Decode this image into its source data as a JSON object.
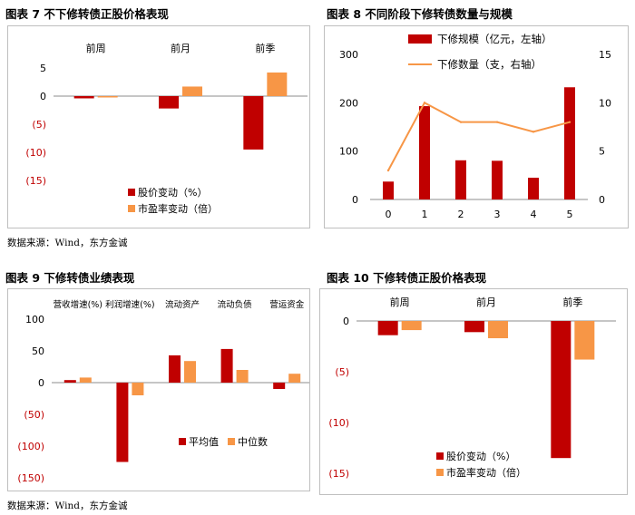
{
  "source_text": "数据来源：Wind，东方金诚",
  "colors": {
    "red": "#C00000",
    "orange": "#F79646",
    "neg_tick": "#C00000"
  },
  "chart_data": [
    {
      "id": "c7",
      "title": "图表 7  不下修转债正股价格表现",
      "type": "bar",
      "categories": [
        "前周",
        "前月",
        "前季"
      ],
      "series": [
        {
          "name": "股价变动（%）",
          "values": [
            -0.4,
            -2.2,
            -9.5
          ]
        },
        {
          "name": "市盈率变动（倍）",
          "values": [
            -0.1,
            1.7,
            4.2
          ]
        }
      ],
      "ylim": [
        -15,
        5
      ],
      "yticks": [
        5,
        0,
        -5,
        -10,
        -15
      ],
      "ytick_labels": [
        "5",
        "0",
        "(5)",
        "(10)",
        "(15)"
      ],
      "legend": "bottom-right",
      "grid": false
    },
    {
      "id": "c8",
      "title": "图表 8  不同阶段下修转债数量与规模",
      "type": "bar+line",
      "categories": [
        "0",
        "1",
        "2",
        "3",
        "4",
        "5"
      ],
      "series": [
        {
          "name": "下修规模（亿元，左轴）",
          "type": "bar",
          "axis": "left",
          "values": [
            37,
            193,
            81,
            80,
            45,
            232
          ]
        },
        {
          "name": "下修数量（支，右轴）",
          "type": "line",
          "axis": "right",
          "values": [
            3,
            10,
            8,
            8,
            7,
            8
          ]
        }
      ],
      "ylim_left": [
        0,
        300
      ],
      "yticks_left": [
        "0",
        "100",
        "200",
        "300"
      ],
      "ylim_right": [
        0,
        15
      ],
      "yticks_right": [
        "0",
        "5",
        "10",
        "15"
      ],
      "legend": "top",
      "grid": false
    },
    {
      "id": "c9",
      "title": "图表 9  下修转债业绩表现",
      "type": "bar",
      "categories": [
        "营收增速(%)",
        "利润增速(%)",
        "流动资产",
        "流动负债",
        "营运资金"
      ],
      "series": [
        {
          "name": "平均值",
          "values": [
            4,
            -125,
            43,
            53,
            -10
          ]
        },
        {
          "name": "中位数",
          "values": [
            8,
            -20,
            34,
            20,
            14
          ]
        }
      ],
      "ylim": [
        -150,
        100
      ],
      "yticks": [
        100,
        50,
        0,
        -50,
        -100,
        -150
      ],
      "ytick_labels": [
        "100",
        "50",
        "0",
        "(50)",
        "(100)",
        "(150)"
      ],
      "legend": "bottom-right",
      "grid": false
    },
    {
      "id": "c10",
      "title": "图表 10  下修转债正股价格表现",
      "type": "bar",
      "categories": [
        "前周",
        "前月",
        "前季"
      ],
      "series": [
        {
          "name": "股价变动（%）",
          "values": [
            -1.4,
            -1.1,
            -13.5
          ]
        },
        {
          "name": "市盈率变动（倍）",
          "values": [
            -0.9,
            -1.7,
            -3.8
          ]
        }
      ],
      "ylim": [
        -15,
        0
      ],
      "yticks": [
        0,
        -5,
        -10,
        -15
      ],
      "ytick_labels": [
        "0",
        "(5)",
        "(10)",
        "(15)"
      ],
      "legend": "bottom-right",
      "grid": false
    }
  ]
}
